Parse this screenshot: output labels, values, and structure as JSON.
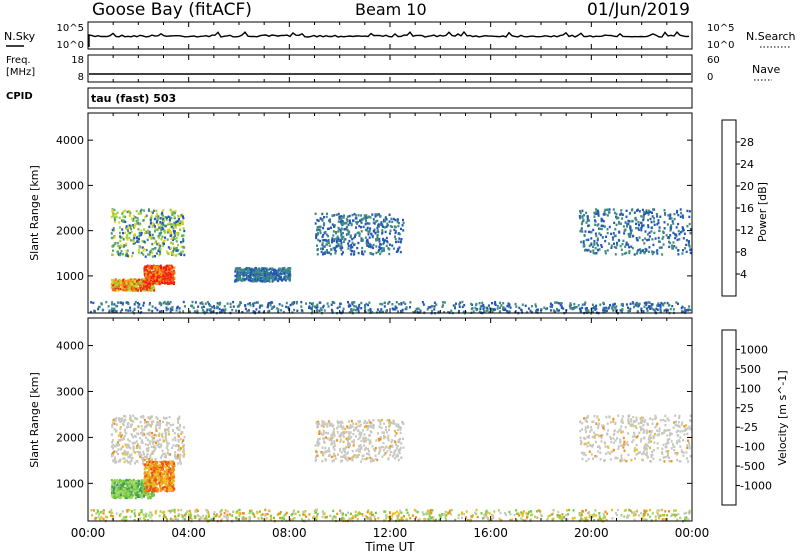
{
  "header": {
    "station": "Goose Bay (fitACF)",
    "beam": "Beam 10",
    "date": "01/Jun/2019"
  },
  "top_panel": {
    "left_label": "N.Sky",
    "right_label": "N.Search",
    "left_ticks": [
      "10^5",
      "10^0"
    ],
    "right_ticks": [
      "10^5",
      "10^0"
    ]
  },
  "freq_panel": {
    "label_line1": "Freq.",
    "label_line2": "[MHz]",
    "right_label": "Nave",
    "left_ticks": [
      "18",
      "8"
    ],
    "right_ticks": [
      "60",
      "0"
    ]
  },
  "cpid": {
    "label": "CPID",
    "text": "tau (fast) 503"
  },
  "time_axis": {
    "label": "Time UT",
    "ticks": [
      "00:00",
      "04:00",
      "08:00",
      "12:00",
      "16:00",
      "20:00",
      "00:00"
    ]
  },
  "chart_data": [
    {
      "type": "heatmap",
      "title": "Power",
      "ylabel": "Slant Range [km]",
      "xlabel": "Time UT",
      "xlim": [
        "00:00",
        "24:00"
      ],
      "ylim": [
        180,
        4600
      ],
      "yticks": [
        1000,
        2000,
        3000,
        4000
      ],
      "colorbar": {
        "label": "Power [dB]",
        "ticks": [
          "4",
          "8",
          "12",
          "16",
          "20",
          "24",
          "28"
        ],
        "colors": [
          "#1010f0",
          "#2456b8",
          "#3f8a82",
          "#5fae58",
          "#9ad038",
          "#e8d020",
          "#f0a018",
          "#f07018",
          "#e83018",
          "#ff1010"
        ]
      },
      "regions": [
        {
          "t0": 0.9,
          "t1": 3.8,
          "r0": 1450,
          "r1": 2500,
          "level": "mid"
        },
        {
          "t0": 0.9,
          "t1": 2.6,
          "r0": 700,
          "r1": 950,
          "level": "high"
        },
        {
          "t0": 2.2,
          "t1": 3.4,
          "r0": 850,
          "r1": 1250,
          "level": "max"
        },
        {
          "t0": 5.8,
          "t1": 8.0,
          "r0": 900,
          "r1": 1200,
          "level": "low"
        },
        {
          "t0": 9.0,
          "t1": 12.5,
          "r0": 1500,
          "r1": 2400,
          "level": "low"
        },
        {
          "t0": 19.5,
          "t1": 24.0,
          "r0": 1500,
          "r1": 2500,
          "level": "low"
        },
        {
          "t0": 0.0,
          "t1": 24.0,
          "r0": 200,
          "r1": 450,
          "level": "low"
        }
      ]
    },
    {
      "type": "heatmap",
      "title": "Velocity",
      "ylabel": "Slant Range [km]",
      "xlabel": "Time UT",
      "xlim": [
        "00:00",
        "24:00"
      ],
      "ylim": [
        180,
        4600
      ],
      "yticks": [
        1000,
        2000,
        3000,
        4000
      ],
      "colorbar": {
        "label": "Velocity [m s^-1]",
        "ticks": [
          "1000",
          "500",
          "100",
          "25",
          "-25",
          "-100",
          "-500",
          "-1000"
        ],
        "colors": [
          "#2040d0",
          "#3a78b0",
          "#3c9a66",
          "#78c83c",
          "#a0d860",
          "#c8c8c0",
          "#e8c020",
          "#f09018",
          "#f05018",
          "#e81010"
        ]
      },
      "regions": [
        {
          "t0": 0.9,
          "t1": 3.8,
          "r0": 1450,
          "r1": 2500,
          "level": "ground"
        },
        {
          "t0": 0.9,
          "t1": 2.6,
          "r0": 700,
          "r1": 1100,
          "level": "positive"
        },
        {
          "t0": 2.2,
          "t1": 3.4,
          "r0": 850,
          "r1": 1500,
          "level": "negative"
        },
        {
          "t0": 9.0,
          "t1": 12.5,
          "r0": 1500,
          "r1": 2400,
          "level": "ground"
        },
        {
          "t0": 19.5,
          "t1": 24.0,
          "r0": 1500,
          "r1": 2500,
          "level": "ground"
        },
        {
          "t0": 0.0,
          "t1": 24.0,
          "r0": 200,
          "r1": 450,
          "level": "mixed"
        }
      ]
    }
  ],
  "colors": {
    "frame": "#000000",
    "background": "#ffffff"
  }
}
